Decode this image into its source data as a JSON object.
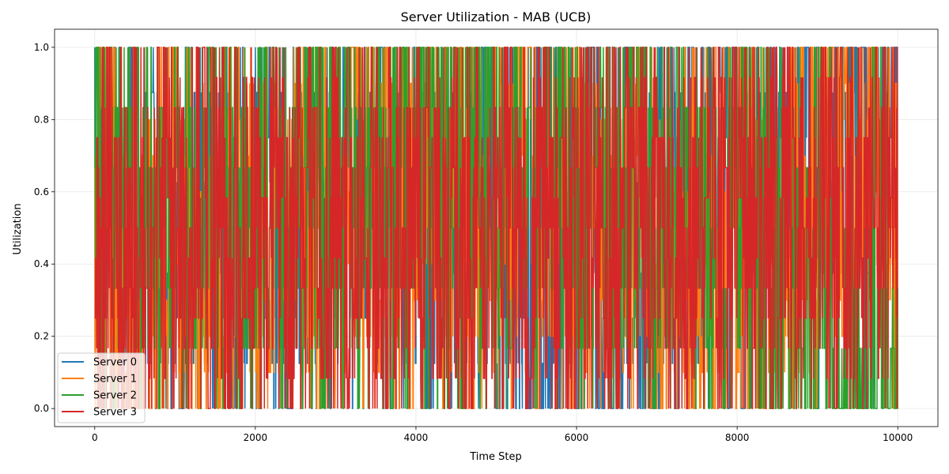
{
  "chart_data": {
    "type": "line",
    "title": "Server Utilization - MAB (UCB)",
    "xlabel": "Time Step",
    "ylabel": "Utilization",
    "xlim": [
      -500,
      10500
    ],
    "ylim": [
      -0.05,
      1.05
    ],
    "x_ticks": [
      0,
      2000,
      4000,
      6000,
      8000,
      10000
    ],
    "x_tick_labels": [
      "0",
      "2000",
      "4000",
      "6000",
      "8000",
      "10000"
    ],
    "y_ticks": [
      0.0,
      0.2,
      0.4,
      0.6,
      0.8,
      1.0
    ],
    "y_tick_labels": [
      "0.0",
      "0.2",
      "0.4",
      "0.6",
      "0.8",
      "1.0"
    ],
    "grid": true,
    "legend_position": "bottom-left",
    "x_range": [
      0,
      10000
    ],
    "series": [
      {
        "name": "Server 0",
        "color": "#1f77b4",
        "levels": 8,
        "density": 0.55,
        "approx_segments": [
          [
            0,
            0.5
          ],
          [
            2000,
            0.5
          ],
          [
            4000,
            0.55
          ],
          [
            6000,
            0.25
          ],
          [
            8000,
            0.6
          ],
          [
            10000,
            0.875
          ]
        ]
      },
      {
        "name": "Server 1",
        "color": "#ff7f0e",
        "levels": 10,
        "density": 0.6,
        "approx_segments": [
          [
            0,
            0.3
          ],
          [
            2000,
            0.5
          ],
          [
            4000,
            0.6
          ],
          [
            6000,
            0.5
          ],
          [
            8000,
            0.4
          ],
          [
            10000,
            0.7
          ]
        ]
      },
      {
        "name": "Server 2",
        "color": "#2ca02c",
        "levels": 6,
        "density": 0.65,
        "approx_segments": [
          [
            0,
            0.6
          ],
          [
            2000,
            0.5
          ],
          [
            4000,
            0.7
          ],
          [
            6000,
            0.55
          ],
          [
            8000,
            0.5
          ],
          [
            10000,
            0.0
          ]
        ]
      },
      {
        "name": "Server 3",
        "color": "#d62728",
        "levels": 12,
        "density": 0.7,
        "approx_segments": [
          [
            0,
            0.4
          ],
          [
            2000,
            0.5
          ],
          [
            4000,
            0.45
          ],
          [
            6000,
            0.45
          ],
          [
            8000,
            0.55
          ],
          [
            10000,
            0.5
          ]
        ]
      }
    ]
  }
}
